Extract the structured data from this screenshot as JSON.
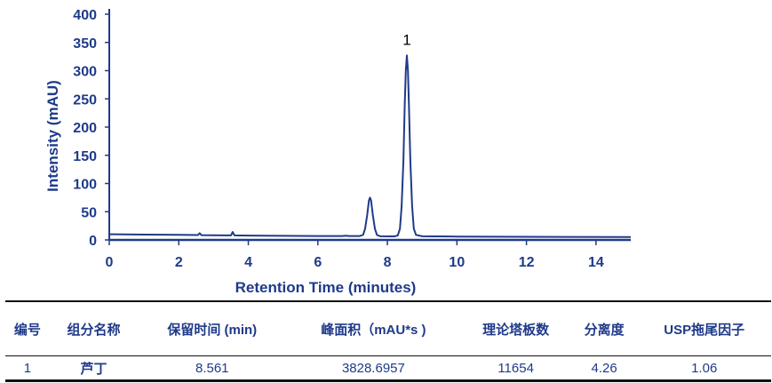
{
  "chart_data": {
    "type": "line",
    "xlabel": "Retention Time (minutes)",
    "ylabel": "Intensity (mAU)",
    "xlim": [
      0,
      15
    ],
    "ylim": [
      0,
      400
    ],
    "xticks": [
      0,
      2,
      4,
      6,
      8,
      10,
      12,
      14
    ],
    "yticks": [
      0,
      50,
      100,
      150,
      200,
      250,
      300,
      350,
      400
    ],
    "grid": false,
    "line_color": "#1f3a8a",
    "annotations": [
      {
        "text": "1",
        "x": 8.56,
        "y": 327
      }
    ],
    "series": [
      {
        "points": [
          [
            0,
            10
          ],
          [
            1,
            9.5
          ],
          [
            2,
            9
          ],
          [
            2.55,
            8.6
          ],
          [
            2.6,
            12
          ],
          [
            2.65,
            8.5
          ],
          [
            3.0,
            8.3
          ],
          [
            3.5,
            8
          ],
          [
            3.55,
            14
          ],
          [
            3.6,
            8
          ],
          [
            4,
            7.7
          ],
          [
            5,
            7.3
          ],
          [
            6,
            7
          ],
          [
            6.7,
            7
          ],
          [
            6.8,
            7.6
          ],
          [
            6.9,
            7
          ],
          [
            7.2,
            7
          ],
          [
            7.3,
            9
          ],
          [
            7.36,
            20
          ],
          [
            7.42,
            45
          ],
          [
            7.47,
            70
          ],
          [
            7.5,
            75
          ],
          [
            7.53,
            70
          ],
          [
            7.58,
            45
          ],
          [
            7.64,
            20
          ],
          [
            7.7,
            9
          ],
          [
            7.8,
            6.5
          ],
          [
            8.2,
            6.3
          ],
          [
            8.3,
            8
          ],
          [
            8.36,
            20
          ],
          [
            8.41,
            60
          ],
          [
            8.46,
            140
          ],
          [
            8.5,
            240
          ],
          [
            8.53,
            300
          ],
          [
            8.56,
            327
          ],
          [
            8.59,
            300
          ],
          [
            8.62,
            240
          ],
          [
            8.66,
            140
          ],
          [
            8.71,
            60
          ],
          [
            8.76,
            20
          ],
          [
            8.82,
            9
          ],
          [
            9,
            6.5
          ],
          [
            10,
            6
          ],
          [
            12,
            5.5
          ],
          [
            15,
            5
          ]
        ]
      }
    ]
  },
  "table": {
    "headers": [
      "编号",
      "组分名称",
      "保留时间 (min)",
      "峰面积（mAU*s )",
      "理论塔板数",
      "分离度",
      "USP拖尾因子"
    ],
    "rows": [
      [
        "1",
        "芦丁",
        "8.561",
        "3828.6957",
        "11654",
        "4.26",
        "1.06"
      ]
    ]
  }
}
